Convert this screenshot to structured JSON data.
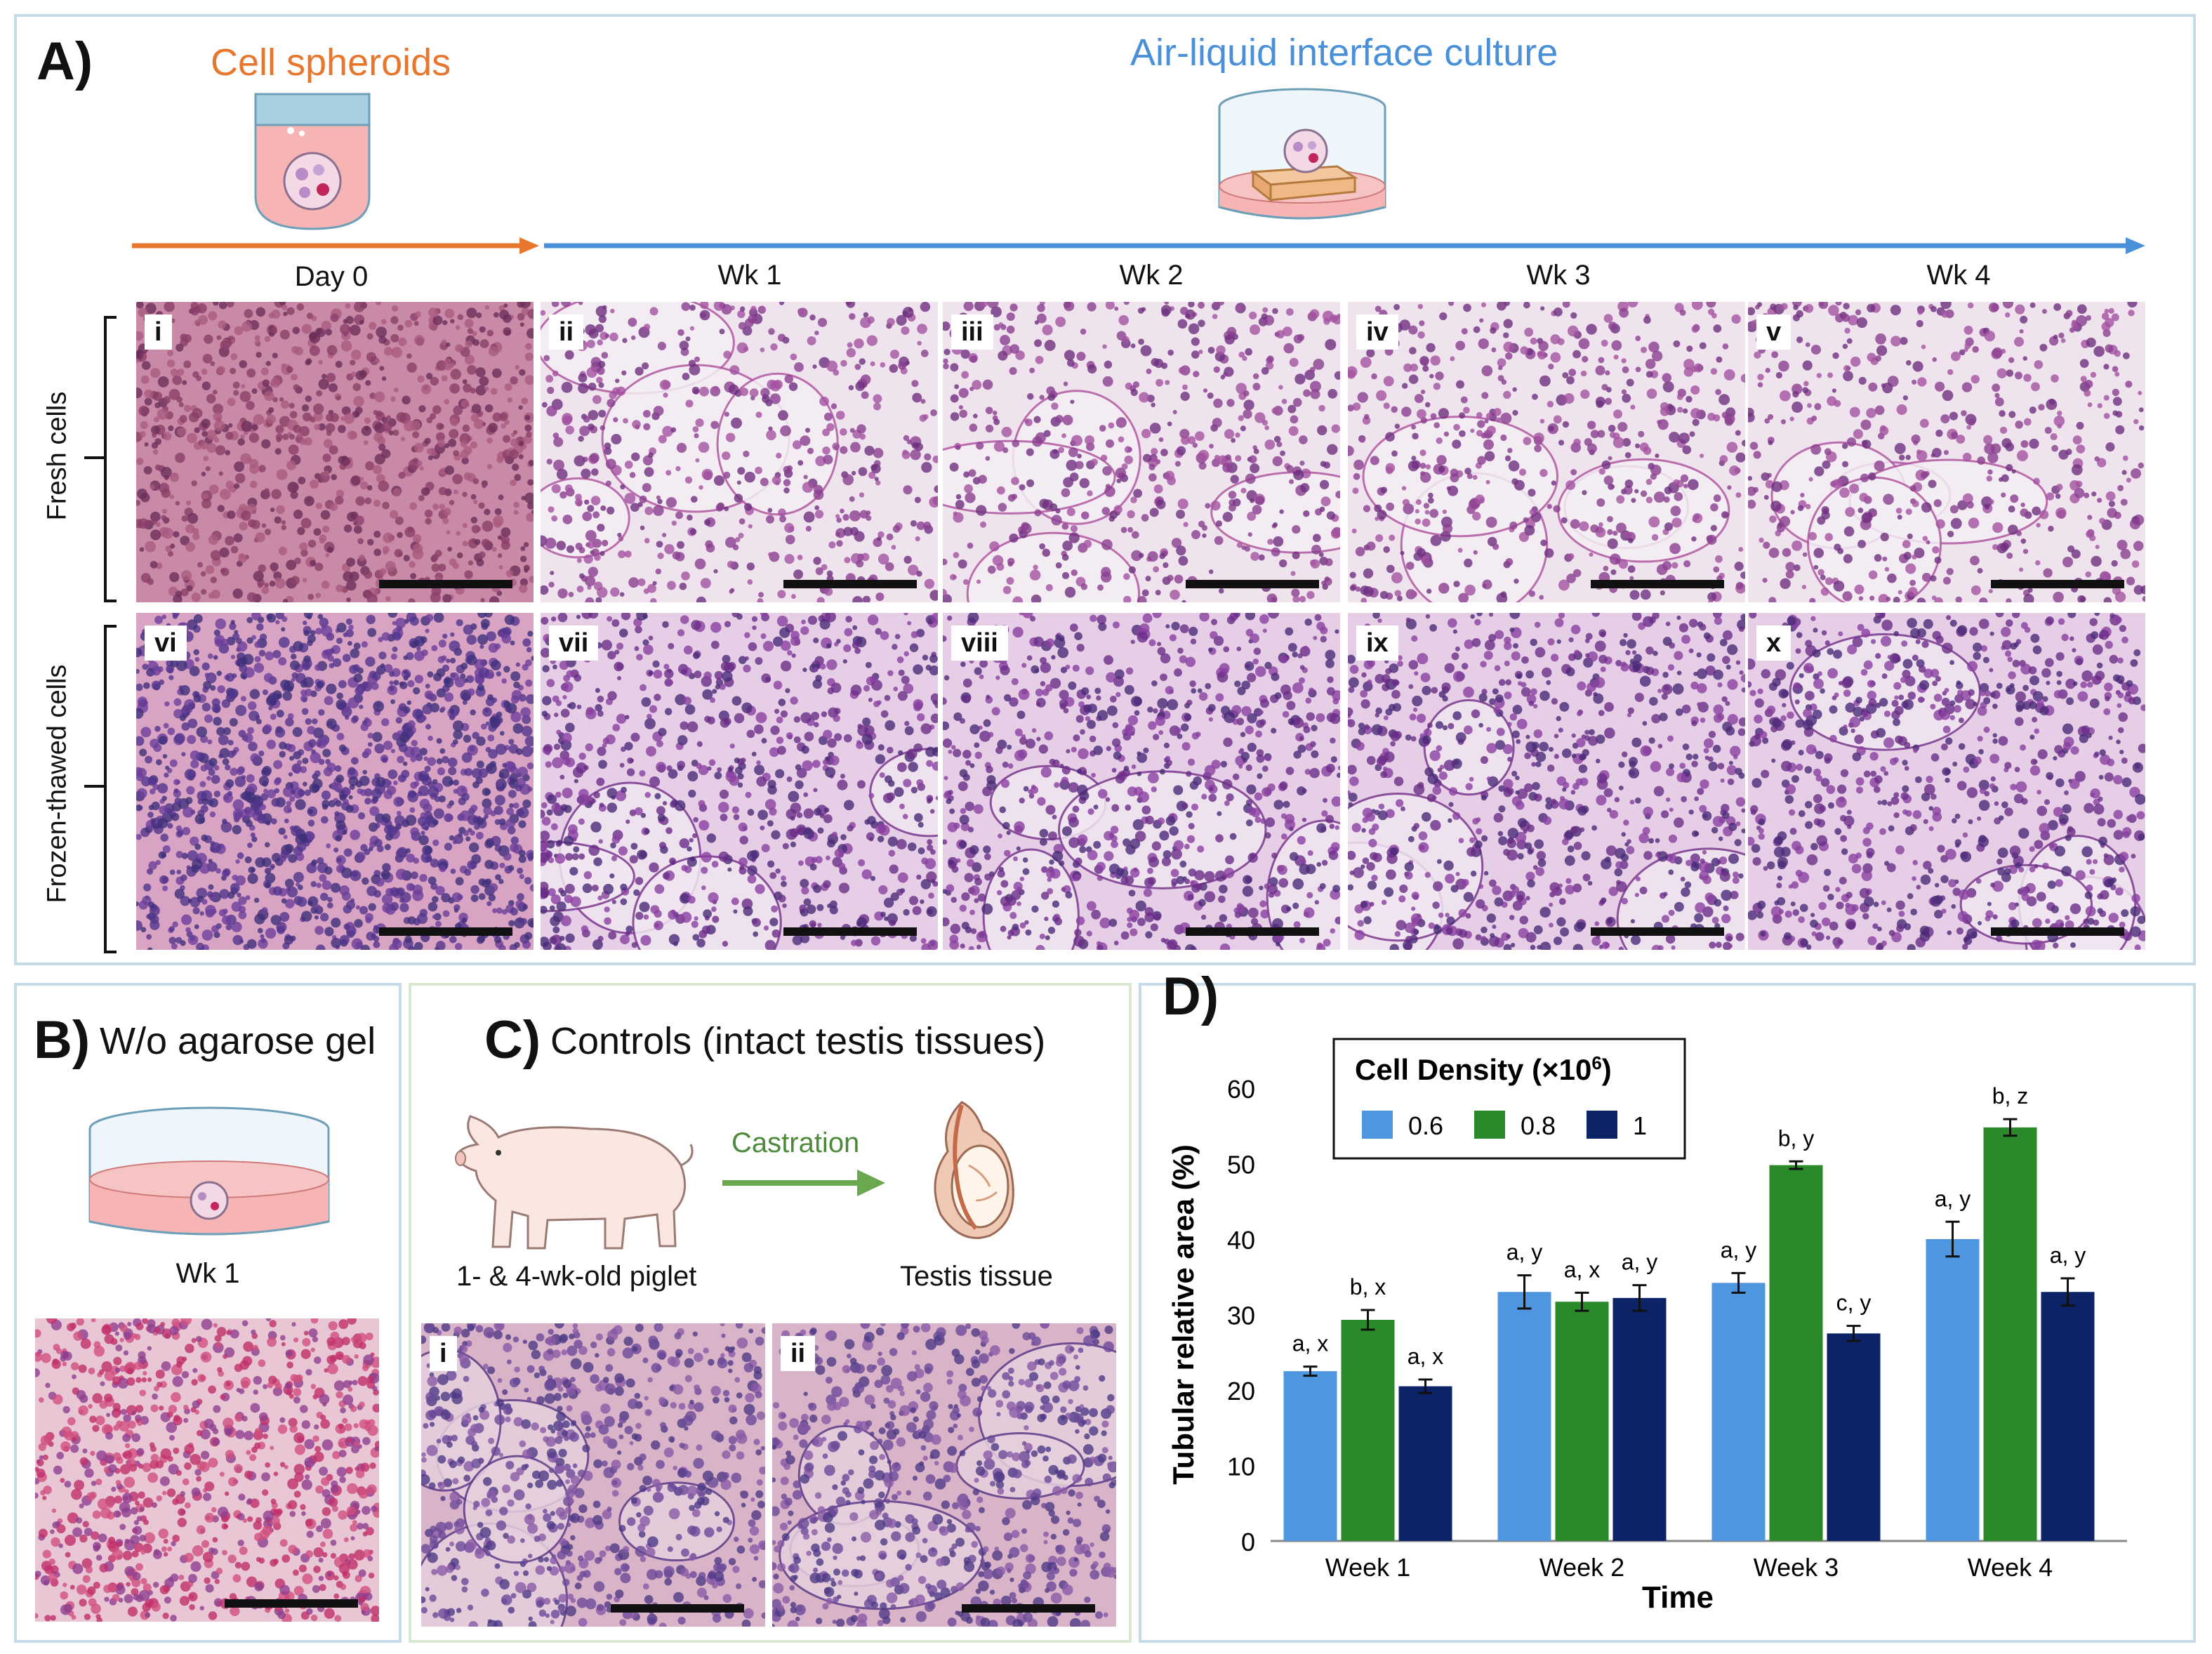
{
  "panelA": {
    "letter": "A)",
    "stage1": "Cell spheroids",
    "stage2": "Air-liquid interface culture",
    "timepoints": [
      "Day 0",
      "Wk 1",
      "Wk 2",
      "Wk 3",
      "Wk 4"
    ],
    "row_labels": [
      "Fresh cells",
      "Frozen-thawed cells"
    ],
    "image_labels_row1": [
      "i",
      "ii",
      "iii",
      "iv",
      "v"
    ],
    "image_labels_row2": [
      "vi",
      "vii",
      "viii",
      "ix",
      "x"
    ],
    "colors": {
      "orange": "#e8762d",
      "blue": "#4a90d9"
    }
  },
  "panelB": {
    "letter": "B)",
    "title": "W/o agarose gel",
    "timepoint": "Wk 1"
  },
  "panelC": {
    "letter": "C)",
    "title": "Controls (intact testis tissues)",
    "arrow_label": "Castration",
    "left_caption": "1- & 4-wk-old piglet",
    "right_caption": "Testis tissue",
    "image_labels": [
      "i",
      "ii"
    ]
  },
  "panelD": {
    "letter": "D)",
    "chart_data": {
      "type": "bar",
      "title": "",
      "xlabel": "Time",
      "ylabel": "Tubular relative area (%)",
      "ylim": [
        0,
        60
      ],
      "yticks": [
        0,
        10,
        20,
        30,
        40,
        50,
        60
      ],
      "categories": [
        "Week 1",
        "Week 2",
        "Week 3",
        "Week 4"
      ],
      "legend_title": "Cell Density (×10⁶)",
      "legend_title_main": "Cell Density (×10",
      "legend_title_sup": "6",
      "legend_title_end": ")",
      "legend_placement": "top-left",
      "series": [
        {
          "name": "0.6",
          "color": "#4f96e0",
          "values": [
            22.5,
            33,
            34.2,
            40
          ],
          "errors": [
            0.6,
            2.2,
            1.3,
            2.3
          ],
          "labels": [
            "a, x",
            "a, y",
            "a, y",
            "a, y"
          ]
        },
        {
          "name": "0.8",
          "color": "#2a8a2a",
          "values": [
            29.3,
            31.7,
            49.8,
            54.8
          ],
          "errors": [
            1.3,
            1.2,
            0.5,
            1.1
          ],
          "labels": [
            "b, x",
            "a, x",
            "b, y",
            "b, z"
          ]
        },
        {
          "name": "1",
          "color": "#0c2467",
          "values": [
            20.5,
            32.2,
            27.5,
            33
          ],
          "errors": [
            0.9,
            1.7,
            1.0,
            1.8
          ],
          "labels": [
            "a, x",
            "a, y",
            "c, y",
            "a, y"
          ]
        }
      ]
    }
  }
}
